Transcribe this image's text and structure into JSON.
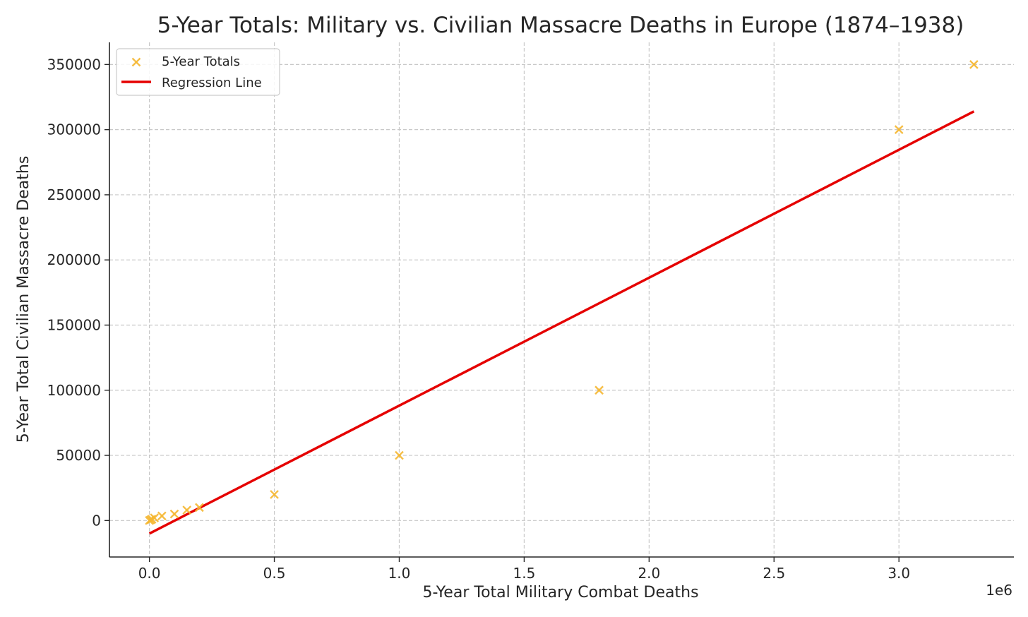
{
  "chart_data": {
    "type": "scatter",
    "title": "5-Year Totals: Military vs. Civilian Massacre Deaths in Europe (1874–1938)",
    "xlabel": "5-Year Total Military Combat Deaths",
    "ylabel": "5-Year Total Civilian Massacre Deaths",
    "x_offset_label": "1e6",
    "xlim": [
      -160000,
      3460000
    ],
    "ylim": [
      -28000,
      367000
    ],
    "x_ticks": [
      0,
      500000,
      1000000,
      1500000,
      2000000,
      2500000,
      3000000
    ],
    "x_tick_labels": [
      "0.0",
      "0.5",
      "1.0",
      "1.5",
      "2.0",
      "2.5",
      "3.0"
    ],
    "y_ticks": [
      0,
      50000,
      100000,
      150000,
      200000,
      250000,
      300000,
      350000
    ],
    "y_tick_labels": [
      "0",
      "50000",
      "100000",
      "150000",
      "200000",
      "250000",
      "300000",
      "350000"
    ],
    "grid": true,
    "legend_position": "top-left",
    "series": [
      {
        "name": "5-Year Totals",
        "kind": "scatter",
        "marker": "x",
        "color": "#f5b731",
        "points": [
          {
            "x": 0,
            "y": 0
          },
          {
            "x": 5000,
            "y": 500
          },
          {
            "x": 10000,
            "y": 1000
          },
          {
            "x": 20000,
            "y": 2000
          },
          {
            "x": 50000,
            "y": 3500
          },
          {
            "x": 100000,
            "y": 5000
          },
          {
            "x": 150000,
            "y": 8000
          },
          {
            "x": 200000,
            "y": 10000
          },
          {
            "x": 500000,
            "y": 20000
          },
          {
            "x": 1000000,
            "y": 50000
          },
          {
            "x": 1800000,
            "y": 100000
          },
          {
            "x": 3000000,
            "y": 300000
          },
          {
            "x": 3300000,
            "y": 350000
          }
        ]
      },
      {
        "name": "Regression Line",
        "kind": "line",
        "color": "#e50000",
        "points": [
          {
            "x": 0,
            "y": -10000
          },
          {
            "x": 3300000,
            "y": 314000
          }
        ]
      }
    ]
  }
}
